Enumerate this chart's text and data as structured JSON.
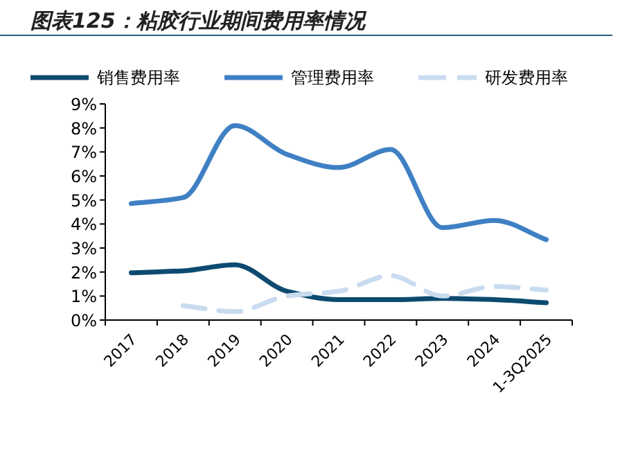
{
  "chart_data": {
    "type": "line",
    "title": "图表125：粘胶行业期间费用率情况",
    "categories": [
      "2017",
      "2018",
      "2019",
      "2020",
      "2021",
      "2022",
      "2023",
      "2024",
      "1-3Q2025"
    ],
    "series": [
      {
        "name": "销售费用率",
        "color": "#0d4a70",
        "values": [
          1.97,
          2.05,
          2.3,
          1.2,
          0.85,
          0.85,
          0.9,
          0.85,
          0.72
        ]
      },
      {
        "name": "管理费用率",
        "color": "#3f80c4",
        "values": [
          4.85,
          5.1,
          8.1,
          6.9,
          6.35,
          7.1,
          3.85,
          4.15,
          3.35
        ]
      },
      {
        "name": "研发费用率",
        "color": "#c9dcef",
        "line_style": "dashed",
        "values": [
          null,
          0.6,
          0.35,
          1.0,
          1.2,
          1.85,
          1.0,
          1.4,
          1.25
        ]
      }
    ],
    "ylim": [
      0,
      9
    ],
    "yticks": [
      {
        "value": 0,
        "label": "0%"
      },
      {
        "value": 1,
        "label": "1%"
      },
      {
        "value": 2,
        "label": "2%"
      },
      {
        "value": 3,
        "label": "3%"
      },
      {
        "value": 4,
        "label": "4%"
      },
      {
        "value": 5,
        "label": "5%"
      },
      {
        "value": 6,
        "label": "6%"
      },
      {
        "value": 7,
        "label": "7%"
      },
      {
        "value": 8,
        "label": "8%"
      },
      {
        "value": 9,
        "label": "9%"
      }
    ],
    "grid": false,
    "legend": "top",
    "marker": "none"
  }
}
